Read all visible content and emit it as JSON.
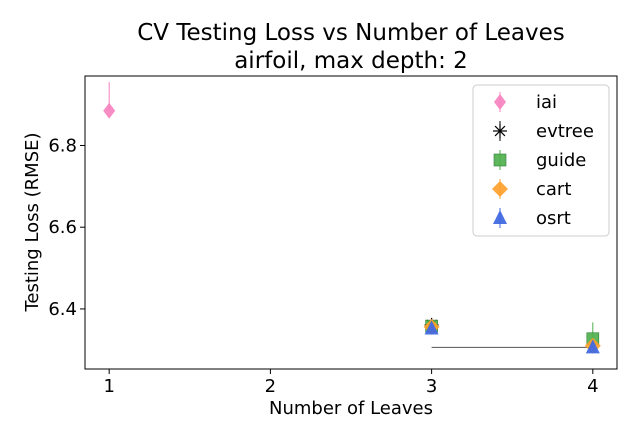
{
  "chart_data": {
    "type": "scatter",
    "title": "CV Testing Loss vs Number of Leaves",
    "subtitle": "airfoil, max depth: 2",
    "xlabel": "Number of Leaves",
    "ylabel": "Testing Loss (RMSE)",
    "xlim": [
      0.85,
      4.15
    ],
    "ylim": [
      6.253,
      6.97
    ],
    "x_ticks": [
      1,
      2,
      3,
      4
    ],
    "y_ticks": [
      6.4,
      6.6,
      6.8
    ],
    "x_tick_labels": [
      "1",
      "2",
      "3",
      "4"
    ],
    "y_tick_labels": [
      "6.4",
      "6.6",
      "6.8"
    ],
    "grid": false,
    "legend_position": "top-right",
    "series": [
      {
        "name": "iai",
        "color": "#f781bf",
        "marker": "thin_diamond",
        "points": [
          {
            "x": 1,
            "y": 6.885,
            "yerr": [
              0.0,
              0.07
            ]
          },
          {
            "x": 3,
            "y": 6.358,
            "yerr": [
              0.0,
              0.0
            ]
          }
        ]
      },
      {
        "name": "evtree",
        "color": "#000000",
        "marker": "asterisk",
        "points": [
          {
            "x": 3,
            "y": 6.361,
            "yerr": [
              0.0,
              0.0
            ]
          }
        ]
      },
      {
        "name": "guide",
        "color": "#4daf4a",
        "marker": "square",
        "points": [
          {
            "x": 3,
            "y": 6.358,
            "yerr": [
              0.0,
              0.0
            ]
          },
          {
            "x": 4,
            "y": 6.327,
            "yerr": [
              0.025,
              0.04
            ]
          }
        ]
      },
      {
        "name": "cart",
        "color": "#ff9f29",
        "marker": "diamond",
        "points": [
          {
            "x": 3,
            "y": 6.356,
            "yerr": [
              0.0,
              0.0
            ]
          },
          {
            "x": 4,
            "y": 6.31,
            "yerr": [
              0.0,
              0.0
            ]
          }
        ]
      },
      {
        "name": "osrt",
        "color": "#4169e1",
        "marker": "triangle",
        "points": [
          {
            "x": 3,
            "y": 6.352,
            "yerr": [
              0.0,
              0.0
            ]
          },
          {
            "x": 4,
            "y": 6.306,
            "yerr": [
              0.0,
              0.0
            ]
          }
        ],
        "line_segment": {
          "x": [
            3,
            4
          ],
          "y": [
            6.306,
            6.306
          ],
          "color": "#555555"
        }
      }
    ]
  }
}
